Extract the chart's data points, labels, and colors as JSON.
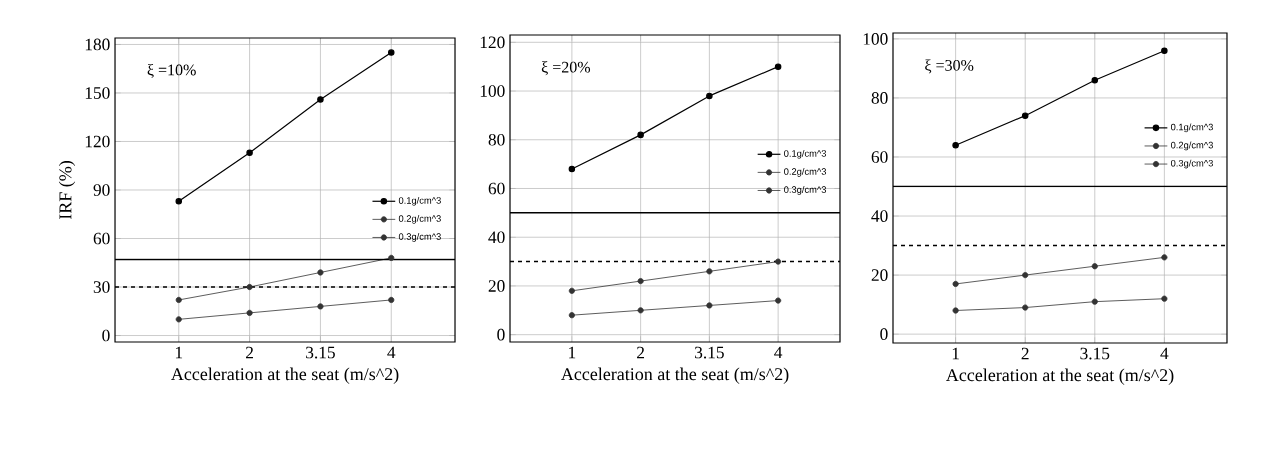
{
  "chart_data": [
    {
      "type": "line",
      "categories": [
        "1",
        "2",
        "3.15",
        "4"
      ],
      "xlabel": "Acceleration at the seat (m/s^2)",
      "ylabel": "IRF (%)",
      "ylim": [
        -4,
        184
      ],
      "yticks": [
        0,
        30,
        60,
        90,
        120,
        150,
        180
      ],
      "grid": true,
      "legend": "right",
      "marker": "circle",
      "annotations": [
        "ξ =10%"
      ],
      "series": [
        {
          "name": "0.1g/cm^3",
          "color": "#000000",
          "values": [
            83,
            113,
            146,
            175
          ]
        },
        {
          "name": "0.2g/cm^3",
          "color": "#333333",
          "values": [
            22,
            30,
            39,
            48
          ]
        },
        {
          "name": "0.3g/cm^3",
          "color": "#333333",
          "values": [
            10,
            14,
            18,
            22
          ]
        }
      ],
      "ref_lines": [
        {
          "axis": "y",
          "value": 47,
          "color": "#000000",
          "line_style": "solid"
        },
        {
          "axis": "y",
          "value": 30,
          "color": "#000000",
          "line_style": "dashed"
        }
      ]
    },
    {
      "type": "line",
      "categories": [
        "1",
        "2",
        "3.15",
        "4"
      ],
      "xlabel": "Acceleration at the seat (m/s^2)",
      "ylim": [
        -3,
        123
      ],
      "yticks": [
        0,
        20,
        40,
        60,
        80,
        100,
        120
      ],
      "grid": true,
      "legend": "right",
      "marker": "circle",
      "annotations": [
        "ξ =20%"
      ],
      "series": [
        {
          "name": "0.1g/cm^3",
          "color": "#000000",
          "values": [
            68,
            82,
            98,
            110
          ]
        },
        {
          "name": "0.2g/cm^3",
          "color": "#333333",
          "values": [
            18,
            22,
            26,
            30
          ]
        },
        {
          "name": "0.3g/cm^3",
          "color": "#333333",
          "values": [
            8,
            10,
            12,
            14
          ]
        }
      ],
      "ref_lines": [
        {
          "axis": "y",
          "value": 50,
          "color": "#000000",
          "line_style": "solid"
        },
        {
          "axis": "y",
          "value": 30,
          "color": "#000000",
          "line_style": "dashed"
        }
      ]
    },
    {
      "type": "line",
      "categories": [
        "1",
        "2",
        "3.15",
        "4"
      ],
      "xlabel": "Acceleration at the seat (m/s^2)",
      "ylim": [
        -3,
        102
      ],
      "yticks": [
        0,
        20,
        40,
        60,
        80,
        100
      ],
      "grid": true,
      "legend": "right",
      "marker": "circle",
      "annotations": [
        "ξ =30%"
      ],
      "series": [
        {
          "name": "0.1g/cm^3",
          "color": "#000000",
          "values": [
            64,
            74,
            86,
            96
          ]
        },
        {
          "name": "0.2g/cm^3",
          "color": "#333333",
          "values": [
            17,
            20,
            23,
            26
          ]
        },
        {
          "name": "0.3g/cm^3",
          "color": "#333333",
          "values": [
            8,
            9,
            11,
            12
          ]
        }
      ],
      "ref_lines": [
        {
          "axis": "y",
          "value": 50,
          "color": "#000000",
          "line_style": "solid"
        },
        {
          "axis": "y",
          "value": 30,
          "color": "#000000",
          "line_style": "dashed"
        }
      ]
    }
  ]
}
